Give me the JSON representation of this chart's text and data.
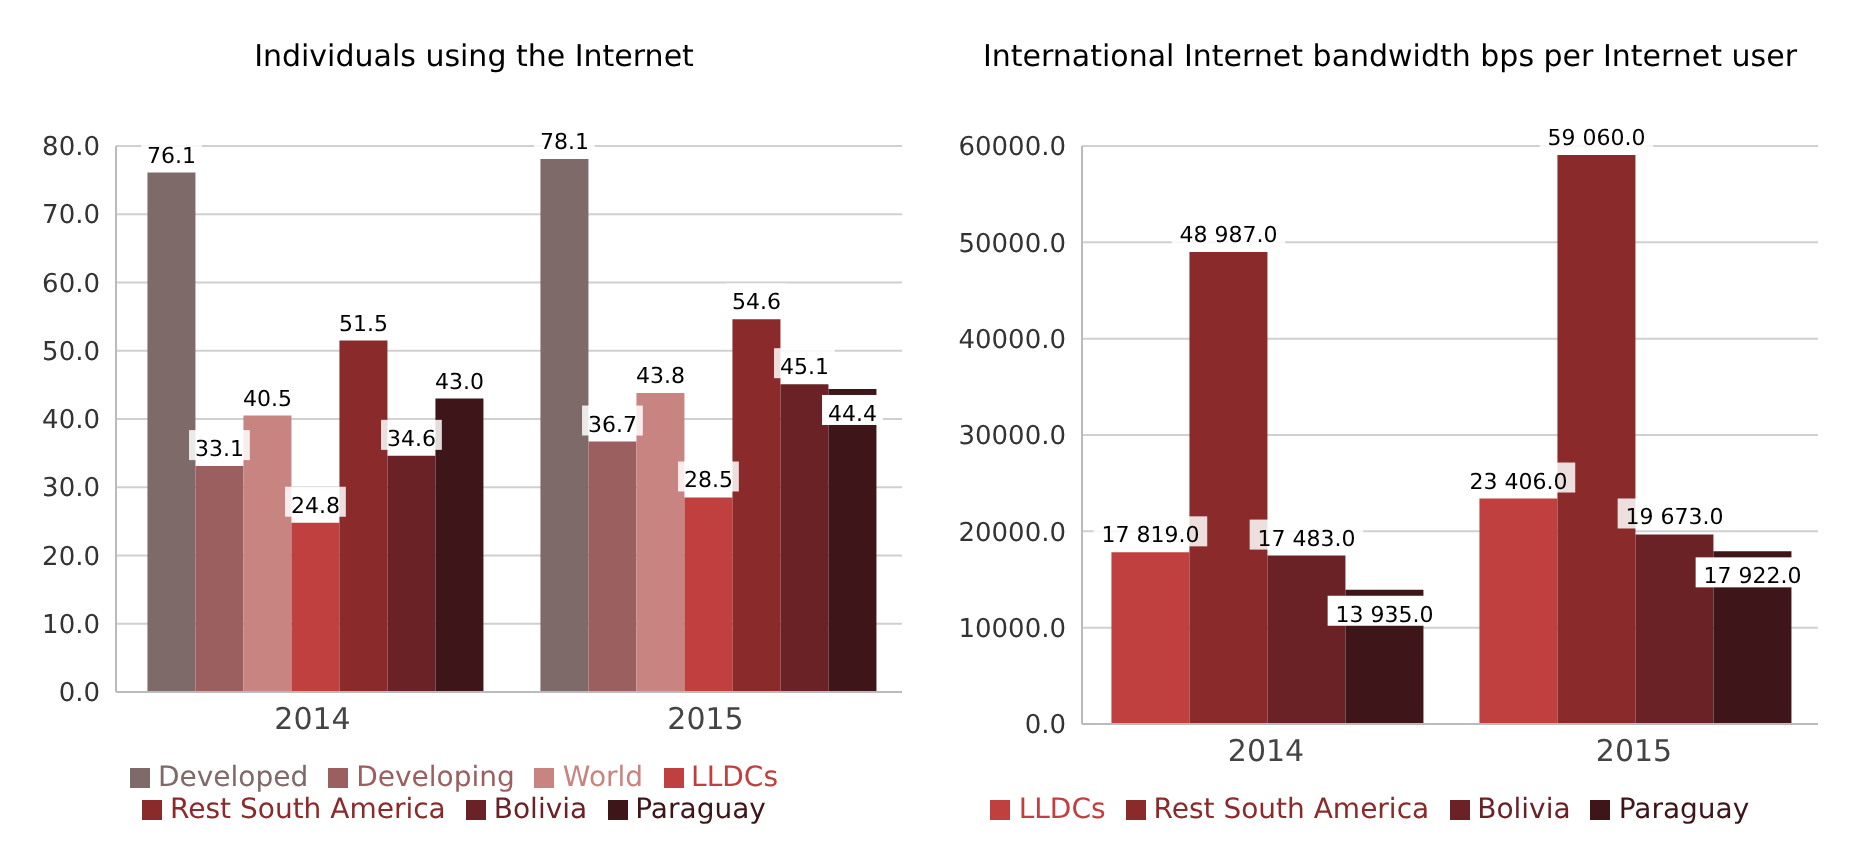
{
  "chart_data": [
    {
      "type": "bar",
      "title": "Individuals using the Internet",
      "categories": [
        "2014",
        "2015"
      ],
      "series": [
        {
          "name": "Developed",
          "color": "#7f6a6a",
          "values": [
            76.1,
            78.1
          ],
          "value_labels": [
            "76.1",
            "78.1"
          ]
        },
        {
          "name": "Developing",
          "color": "#9a5f5e",
          "values": [
            33.1,
            36.7
          ],
          "value_labels": [
            "33.1",
            "36.7"
          ]
        },
        {
          "name": "World",
          "color": "#c78480",
          "values": [
            40.5,
            43.8
          ],
          "value_labels": [
            "40.5",
            "43.8"
          ]
        },
        {
          "name": "LLDCs",
          "color": "#c0403f",
          "values": [
            24.8,
            28.5
          ],
          "value_labels": [
            "24.8",
            "28.5"
          ]
        },
        {
          "name": "Rest South America",
          "color": "#8b2a2a",
          "values": [
            51.5,
            54.6
          ],
          "value_labels": [
            "51.5",
            "54.6"
          ]
        },
        {
          "name": "Bolivia",
          "color": "#6b2226",
          "values": [
            34.6,
            45.1
          ],
          "value_labels": [
            "34.6",
            "45.1"
          ]
        },
        {
          "name": "Paraguay",
          "color": "#3e1518",
          "values": [
            43.0,
            44.4
          ],
          "value_labels": [
            "43.0",
            "44.4"
          ]
        }
      ],
      "ylim": [
        0,
        80
      ],
      "yticks": [
        {
          "value": 0,
          "label": "0.0"
        },
        {
          "value": 10,
          "label": "10.0"
        },
        {
          "value": 20,
          "label": "20.0"
        },
        {
          "value": 30,
          "label": "30.0"
        },
        {
          "value": 40,
          "label": "40.0"
        },
        {
          "value": 50,
          "label": "50.0"
        },
        {
          "value": 60,
          "label": "60.0"
        },
        {
          "value": 70,
          "label": "70.0"
        },
        {
          "value": 80,
          "label": "80.0"
        }
      ],
      "grid": "y",
      "legend": "bottom"
    },
    {
      "type": "bar",
      "title": "International Internet bandwidth bps per Internet user",
      "categories": [
        "2014",
        "2015"
      ],
      "series": [
        {
          "name": "LLDCs",
          "color": "#c0403f",
          "values": [
            17819,
            23406
          ],
          "value_labels": [
            "17 819.0",
            "23 406.0"
          ]
        },
        {
          "name": "Rest South America",
          "color": "#8b2a2a",
          "values": [
            48987,
            59060
          ],
          "value_labels": [
            "48 987.0",
            "59 060.0"
          ]
        },
        {
          "name": "Bolivia",
          "color": "#6b2226",
          "values": [
            17483,
            19673
          ],
          "value_labels": [
            "17 483.0",
            "19 673.0"
          ]
        },
        {
          "name": "Paraguay",
          "color": "#3e1518",
          "values": [
            13935,
            17922
          ],
          "value_labels": [
            "13 935.0",
            "17 922.0"
          ]
        }
      ],
      "ylim": [
        0,
        60000
      ],
      "yticks": [
        {
          "value": 0,
          "label": "0.0"
        },
        {
          "value": 10000,
          "label": "10000.0"
        },
        {
          "value": 20000,
          "label": "20000.0"
        },
        {
          "value": 30000,
          "label": "30000.0"
        },
        {
          "value": 40000,
          "label": "40000.0"
        },
        {
          "value": 50000,
          "label": "50000.0"
        },
        {
          "value": 60000,
          "label": "60000.0"
        }
      ],
      "grid": "y",
      "legend": "bottom"
    }
  ]
}
